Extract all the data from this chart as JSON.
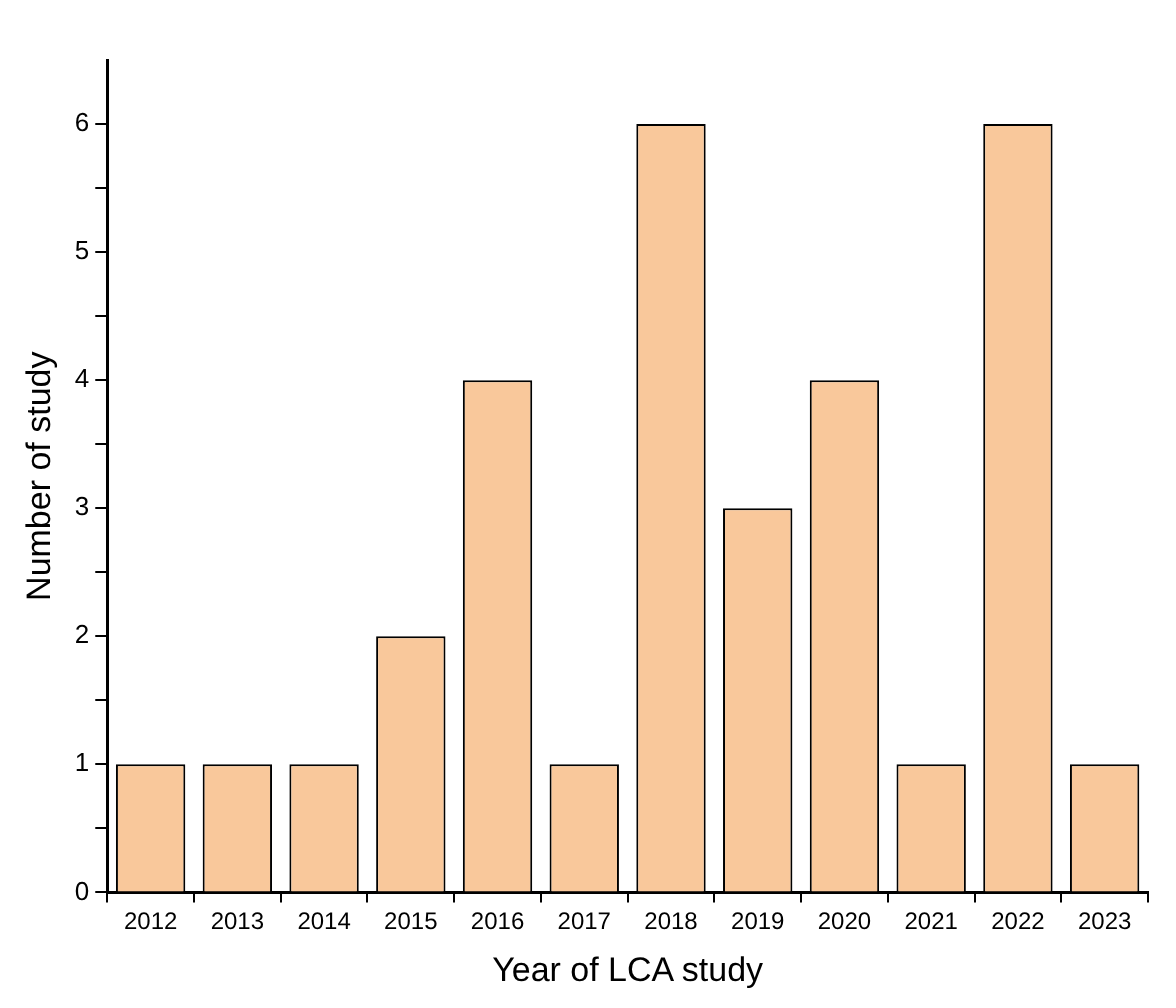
{
  "chart_data": {
    "type": "bar",
    "xlabel": "Year of LCA study",
    "ylabel": "Number of study",
    "categories": [
      "2012",
      "2013",
      "2014",
      "2015",
      "2016",
      "2017",
      "2018",
      "2019",
      "2020",
      "2021",
      "2022",
      "2023"
    ],
    "values": [
      1,
      1,
      1,
      2,
      4,
      1,
      6,
      3,
      4,
      1,
      6,
      1
    ],
    "color": "#f9c89b",
    "ylim": [
      0,
      6.5
    ],
    "yticks": [
      0,
      {
        "value": 0.5,
        "label": null
      },
      1,
      {
        "value": 1.5,
        "label": null
      },
      2,
      {
        "value": 2.5,
        "label": null
      },
      3,
      {
        "value": 3.5,
        "label": null
      },
      4,
      {
        "value": 4.5,
        "label": null
      },
      5,
      {
        "value": 5.5,
        "label": null
      },
      6
    ],
    "grid": false,
    "legend": false
  }
}
